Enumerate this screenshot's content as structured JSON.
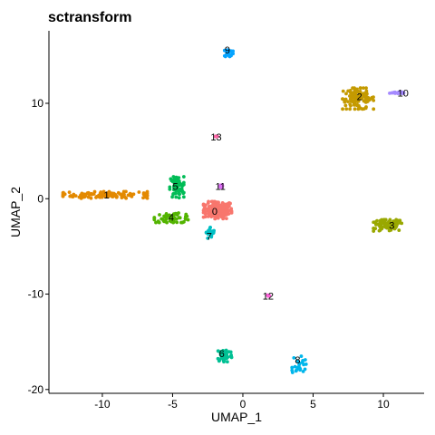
{
  "chart_data": {
    "type": "scatter",
    "title": "sctransform",
    "xlabel": "UMAP_1",
    "ylabel": "UMAP_2",
    "xlim": [
      -13.8,
      12.9
    ],
    "ylim": [
      -20.4,
      17.6
    ],
    "xticks": [
      -10,
      -5,
      0,
      5,
      10
    ],
    "yticks": [
      -20,
      -10,
      0,
      10
    ],
    "xtick_labels": [
      "-10",
      "-5",
      "0",
      "5",
      "10"
    ],
    "ytick_labels": [
      "-20",
      "-10",
      "0",
      "10"
    ],
    "grid": false,
    "legend": "none",
    "series": [
      {
        "name": "0",
        "color": "#F8766D",
        "center": [
          -1.8,
          -1.2
        ],
        "spread": [
          1.0,
          0.9
        ],
        "n": 140,
        "label_pos": [
          -2.0,
          -1.3
        ]
      },
      {
        "name": "1",
        "color": "#E38900",
        "center": [
          -9.8,
          0.4
        ],
        "spread": [
          3.0,
          0.35
        ],
        "n": 130,
        "label_pos": [
          -9.7,
          0.4
        ]
      },
      {
        "name": "2",
        "color": "#C49A00",
        "center": [
          8.2,
          10.5
        ],
        "spread": [
          1.1,
          1.1
        ],
        "n": 110,
        "label_pos": [
          8.3,
          10.7
        ]
      },
      {
        "name": "3",
        "color": "#99A800",
        "center": [
          10.3,
          -2.8
        ],
        "spread": [
          1.0,
          0.6
        ],
        "n": 90,
        "label_pos": [
          10.6,
          -2.8
        ]
      },
      {
        "name": "4",
        "color": "#53B400",
        "center": [
          -5.0,
          -2.0
        ],
        "spread": [
          1.3,
          0.5
        ],
        "n": 60,
        "label_pos": [
          -5.1,
          -1.9
        ]
      },
      {
        "name": "5",
        "color": "#00BC56",
        "center": [
          -4.7,
          1.2
        ],
        "spread": [
          0.5,
          1.1
        ],
        "n": 70,
        "label_pos": [
          -4.8,
          1.3
        ]
      },
      {
        "name": "6",
        "color": "#00C094",
        "center": [
          -1.3,
          -16.4
        ],
        "spread": [
          0.5,
          0.7
        ],
        "n": 60,
        "label_pos": [
          -1.5,
          -16.2
        ]
      },
      {
        "name": "7",
        "color": "#00BFC4",
        "center": [
          -2.3,
          -3.6
        ],
        "spread": [
          0.3,
          0.6
        ],
        "n": 25,
        "label_pos": [
          -2.4,
          -3.9
        ]
      },
      {
        "name": "8",
        "color": "#00B6EB",
        "center": [
          4.0,
          -17.4
        ],
        "spread": [
          0.5,
          0.9
        ],
        "n": 25,
        "label_pos": [
          3.9,
          -16.9
        ]
      },
      {
        "name": "9",
        "color": "#06A4FF",
        "center": [
          -1.0,
          15.3
        ],
        "spread": [
          0.3,
          0.4
        ],
        "n": 25,
        "label_pos": [
          -1.1,
          15.6
        ]
      },
      {
        "name": "10",
        "color": "#A58AFF",
        "center": [
          10.9,
          11.1
        ],
        "spread": [
          0.8,
          0.12
        ],
        "n": 20,
        "label_pos": [
          11.4,
          11.1
        ]
      },
      {
        "name": "11",
        "color": "#DF70F8",
        "center": [
          -1.6,
          1.3
        ],
        "spread": [
          0.15,
          0.15
        ],
        "n": 10,
        "label_pos": [
          -1.6,
          1.3
        ]
      },
      {
        "name": "12",
        "color": "#FB61D7",
        "center": [
          1.8,
          -10.2
        ],
        "spread": [
          0.1,
          0.1
        ],
        "n": 5,
        "label_pos": [
          1.8,
          -10.2
        ]
      },
      {
        "name": "13",
        "color": "#FF66A8",
        "center": [
          -1.9,
          6.5
        ],
        "spread": [
          0.1,
          0.1
        ],
        "n": 5,
        "label_pos": [
          -1.9,
          6.5
        ]
      }
    ]
  }
}
